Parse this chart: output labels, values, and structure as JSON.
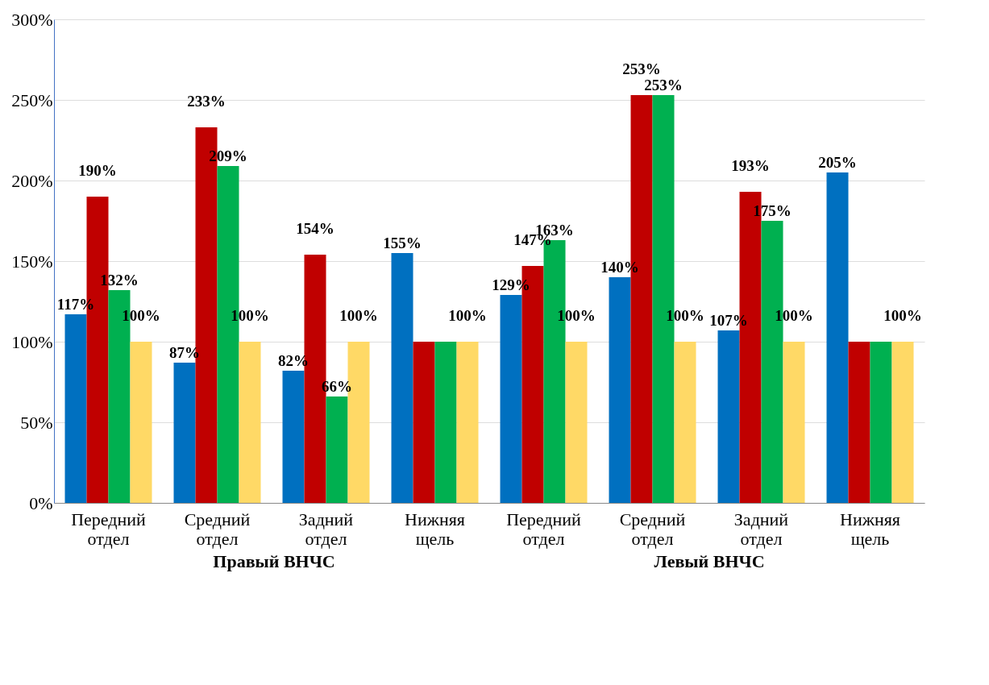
{
  "chart_data": {
    "type": "bar",
    "categories": [
      "Передний отдел",
      "Средний отдел",
      "Задний отдел",
      "Нижняя щель",
      "Передний отдел",
      "Средний отдел",
      "Задний отдел",
      "Нижняя щель"
    ],
    "series": [
      {
        "color": "#0070c0",
        "values": [
          117,
          87,
          82,
          155,
          129,
          140,
          107,
          205
        ],
        "value_labels": [
          "117%",
          "87%",
          "82%",
          "155%",
          "129%",
          "140%",
          "107%",
          "205%"
        ]
      },
      {
        "color": "#c00000",
        "values": [
          190,
          233,
          154,
          100,
          147,
          253,
          193,
          100
        ],
        "value_labels": [
          "190%",
          "233%",
          "154%",
          null,
          "147%",
          "253%",
          "193%",
          null
        ]
      },
      {
        "color": "#00b050",
        "values": [
          132,
          209,
          66,
          100,
          163,
          253,
          175,
          100
        ],
        "value_labels": [
          "132%",
          "209%",
          "66%",
          null,
          "163%",
          "253%",
          "175%",
          null
        ]
      },
      {
        "color": "#ffd966",
        "values": [
          100,
          100,
          100,
          100,
          100,
          100,
          100,
          100
        ],
        "value_labels": [
          "100%",
          "100%",
          "100%",
          "100%",
          "100%",
          "100%",
          "100%",
          "100%"
        ]
      }
    ],
    "ylim": [
      0,
      300
    ],
    "yticks": [
      {
        "value": 0,
        "label": "0%"
      },
      {
        "value": 50,
        "label": "50%"
      },
      {
        "value": 100,
        "label": "100%"
      },
      {
        "value": 150,
        "label": "150%"
      },
      {
        "value": 200,
        "label": "200%"
      },
      {
        "value": 250,
        "label": "250%"
      },
      {
        "value": 300,
        "label": "300%"
      }
    ],
    "grid": "y",
    "annotations": [
      "Правый ВНЧС",
      "Левый ВНЧС"
    ]
  }
}
